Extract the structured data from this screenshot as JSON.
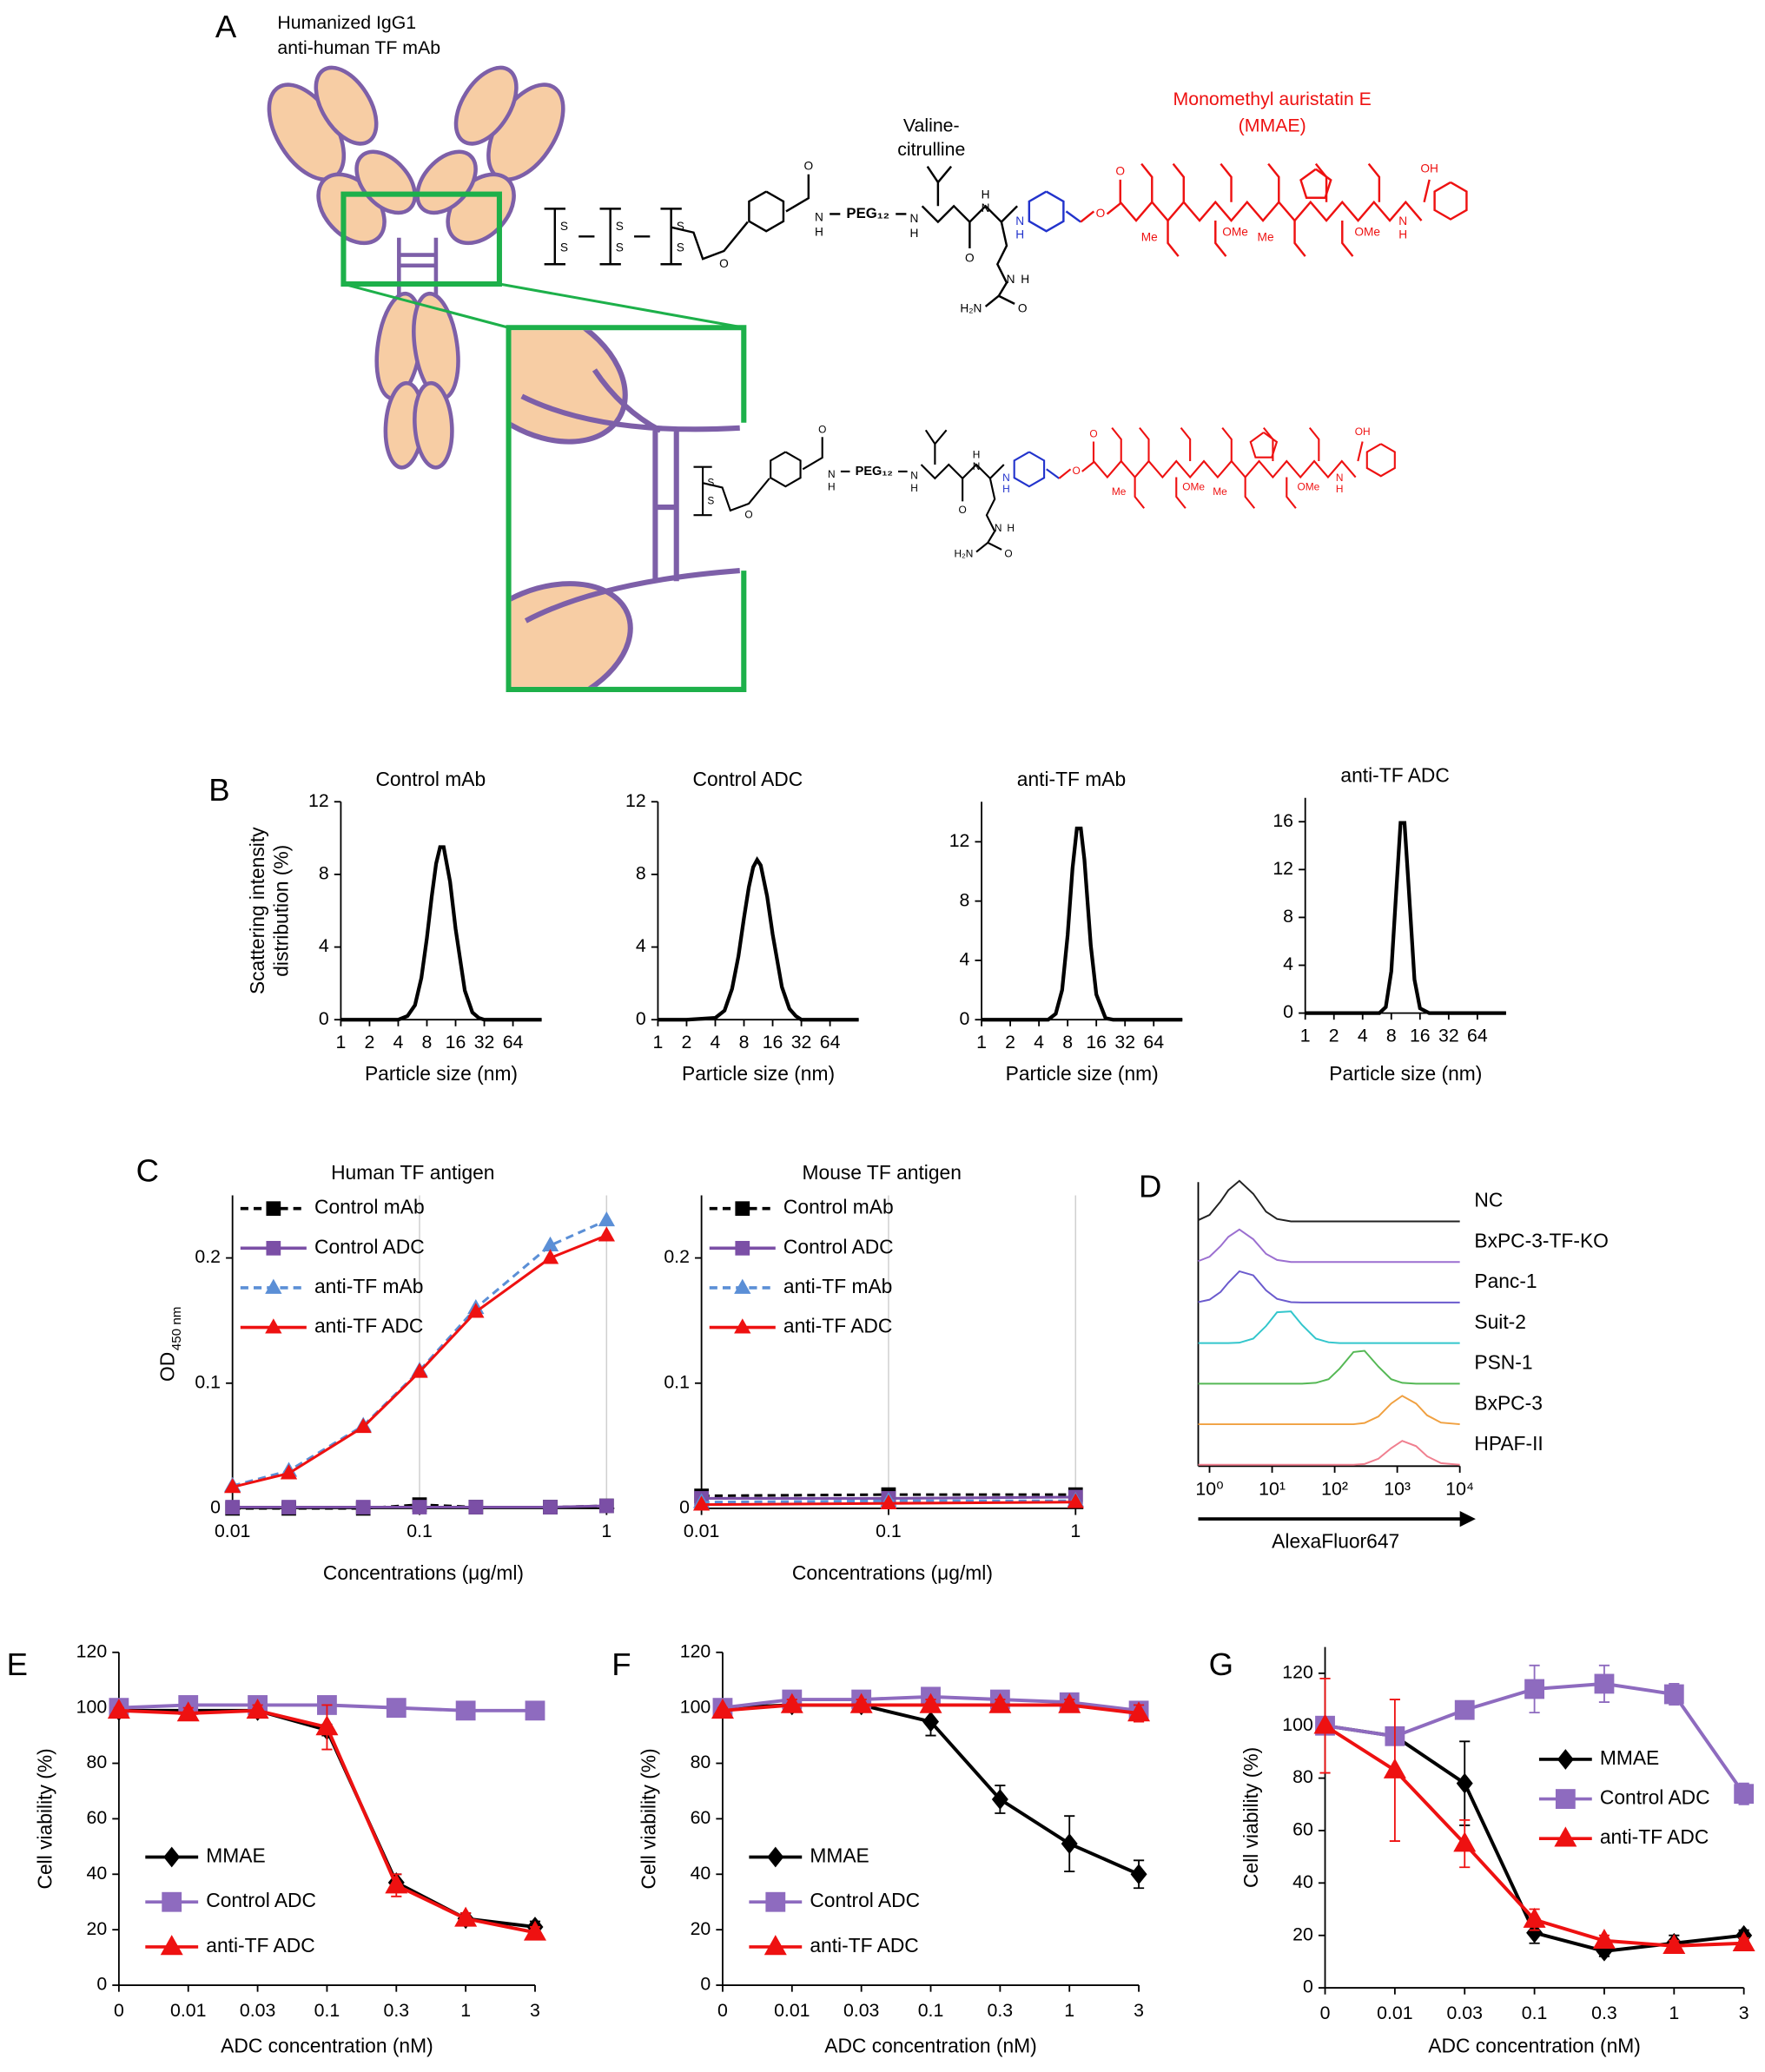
{
  "panels": [
    "A",
    "B",
    "C",
    "D",
    "E",
    "F",
    "G"
  ],
  "diagram": {
    "antibody_label": [
      "Humanized IgG1",
      "anti-human TF mAb"
    ],
    "linker_label": [
      "Valine-",
      "citrulline"
    ],
    "payload_label": [
      "Monomethyl auristatin E",
      "(MMAE)"
    ],
    "atoms": {
      "s": "S",
      "o": "O",
      "n": "N",
      "h": "H",
      "peg": "PEG₁₂",
      "h2n": "H₂N",
      "me": "Me",
      "ome": "OMe",
      "oh": "OH"
    }
  },
  "chart_data": [
    {
      "type": "line",
      "title": "Control mAb",
      "x_label": "Particle size (nm)",
      "y_label": [
        "Scattering intensity",
        "distribution (%)"
      ],
      "xscale": "log",
      "x": [
        1,
        2,
        4,
        5,
        6,
        7,
        8,
        9,
        10,
        11,
        12,
        14,
        16,
        20,
        24,
        28,
        32,
        64,
        128
      ],
      "xlim": [
        1,
        128
      ],
      "xticks": [
        1,
        2,
        4,
        8,
        16,
        32,
        64
      ],
      "ylim": [
        0,
        12
      ],
      "yticks": [
        0,
        4,
        8,
        12
      ],
      "series": [
        {
          "color": "#000000",
          "values": [
            0,
            0,
            0,
            0.2,
            0.8,
            2.3,
            4.5,
            6.8,
            8.6,
            9.5,
            9.5,
            7.6,
            5.0,
            1.6,
            0.4,
            0.1,
            0,
            0,
            0
          ]
        }
      ]
    },
    {
      "type": "line",
      "title": "Control ADC",
      "x_label": "Particle size (nm)",
      "xscale": "log",
      "x": [
        1,
        2,
        4,
        5,
        6,
        7,
        8,
        9,
        10,
        11,
        12,
        14,
        16,
        20,
        24,
        28,
        32,
        64,
        128
      ],
      "xlim": [
        1,
        128
      ],
      "xticks": [
        1,
        2,
        4,
        8,
        16,
        32,
        64
      ],
      "ylim": [
        0,
        12
      ],
      "yticks": [
        0,
        4,
        8,
        12
      ],
      "series": [
        {
          "color": "#000000",
          "values": [
            0,
            0,
            0.1,
            0.5,
            1.7,
            3.5,
            5.6,
            7.3,
            8.4,
            8.8,
            8.5,
            6.8,
            4.7,
            1.8,
            0.6,
            0.2,
            0,
            0,
            0
          ]
        }
      ]
    },
    {
      "type": "line",
      "title": "anti-TF mAb",
      "x_label": "Particle size (nm)",
      "xscale": "log",
      "x": [
        1,
        2,
        4,
        5,
        6,
        7,
        8,
        9,
        10,
        11,
        12,
        14,
        16,
        20,
        24,
        28,
        32,
        64,
        128
      ],
      "xlim": [
        1,
        128
      ],
      "xticks": [
        1,
        2,
        4,
        8,
        16,
        32,
        64
      ],
      "ylim": [
        0,
        14.7
      ],
      "yticks": [
        0,
        4,
        8,
        12
      ],
      "series": [
        {
          "color": "#000000",
          "values": [
            0,
            0,
            0,
            0,
            0.4,
            2.0,
            5.7,
            10.2,
            12.9,
            12.9,
            10.8,
            5.0,
            1.7,
            0.1,
            0,
            0,
            0,
            0,
            0
          ]
        }
      ]
    },
    {
      "type": "line",
      "title": "anti-TF ADC",
      "x_label": "Particle size (nm)",
      "xscale": "log",
      "x": [
        1,
        2,
        4,
        5,
        6,
        7,
        8,
        9,
        10,
        11,
        12,
        14,
        16,
        20,
        24,
        28,
        32,
        64,
        128
      ],
      "xlim": [
        1,
        128
      ],
      "xticks": [
        1,
        2,
        4,
        8,
        16,
        32,
        64
      ],
      "ylim": [
        0,
        18
      ],
      "yticks": [
        0,
        4,
        8,
        12,
        16
      ],
      "series": [
        {
          "color": "#000000",
          "values": [
            0,
            0,
            0,
            0,
            0,
            0.5,
            3.5,
            10.1,
            15.9,
            15.9,
            11.3,
            2.8,
            0.4,
            0,
            0,
            0,
            0,
            0,
            0
          ]
        }
      ]
    },
    {
      "type": "line",
      "title": "Human TF antigen",
      "x_label": "Concentrations (μg/ml)",
      "y_label": [
        "OD"
      ],
      "y_label_sub": "450 nm",
      "xscale": "log",
      "grid": "x",
      "legend": "upper left",
      "x": [
        0.01,
        0.02,
        0.05,
        0.1,
        0.2,
        0.5,
        1
      ],
      "xlim": [
        0.01,
        1.1
      ],
      "xticks": [
        0.01,
        0.1,
        1
      ],
      "ylim": [
        0,
        0.25
      ],
      "yticks": [
        0,
        0.1,
        0.2
      ],
      "series": [
        {
          "name": "Control mAb",
          "color": "#000000",
          "marker": "square",
          "dash": true,
          "values": [
            0,
            0,
            0,
            0.003,
            0.001,
            0.001,
            0.002
          ]
        },
        {
          "name": "Control ADC",
          "color": "#7b4fa6",
          "marker": "square",
          "dash": false,
          "values": [
            0.001,
            0.001,
            0.001,
            0.001,
            0.001,
            0.001,
            0.002
          ]
        },
        {
          "name": "anti-TF mAb",
          "color": "#5b8fd6",
          "marker": "triangle",
          "dash": true,
          "values": [
            0.018,
            0.03,
            0.066,
            0.11,
            0.16,
            0.21,
            0.23
          ]
        },
        {
          "name": "anti-TF ADC",
          "color": "#ee1111",
          "marker": "triangle",
          "dash": false,
          "values": [
            0.017,
            0.028,
            0.065,
            0.109,
            0.157,
            0.2,
            0.218
          ]
        }
      ]
    },
    {
      "type": "line",
      "title": "Mouse TF antigen",
      "x_label": "Concentrations (μg/ml)",
      "xscale": "log",
      "grid": "x",
      "legend": "upper left",
      "x": [
        0.01,
        0.1,
        1
      ],
      "xlim": [
        0.01,
        1.1
      ],
      "xticks": [
        0.01,
        0.1,
        1
      ],
      "ylim": [
        0,
        0.25
      ],
      "yticks": [
        0,
        0.1,
        0.2
      ],
      "series": [
        {
          "name": "Control mAb",
          "color": "#000000",
          "marker": "square",
          "dash": true,
          "values": [
            0.01,
            0.011,
            0.011
          ]
        },
        {
          "name": "Control ADC",
          "color": "#7b4fa6",
          "marker": "square",
          "dash": false,
          "values": [
            0.008,
            0.008,
            0.009
          ]
        },
        {
          "name": "anti-TF mAb",
          "color": "#5b8fd6",
          "marker": "triangle",
          "dash": true,
          "values": [
            0.005,
            0.006,
            0.006
          ]
        },
        {
          "name": "anti-TF ADC",
          "color": "#ee1111",
          "marker": "triangle",
          "dash": false,
          "values": [
            0.003,
            0.004,
            0.005
          ]
        }
      ]
    },
    {
      "type": "ridgeline",
      "x_label": "AlexaFluor647",
      "xscale": "log",
      "x": [
        0.66,
        1,
        1.5,
        2,
        3,
        5,
        8,
        12,
        20,
        30,
        50,
        80,
        120,
        200,
        300,
        500,
        800,
        1200,
        2000,
        3000,
        5000,
        10000
      ],
      "xlim": [
        0.66,
        10000
      ],
      "xticks": [
        {
          "value": 1,
          "label": "10⁰"
        },
        {
          "value": 10,
          "label": "10¹"
        },
        {
          "value": 100,
          "label": "10²"
        },
        {
          "value": 1000,
          "label": "10³"
        },
        {
          "value": 10000,
          "label": "10⁴"
        }
      ],
      "ylim": [
        0,
        100
      ],
      "series": [
        {
          "name": "NC",
          "color": "#222222",
          "values": [
            3,
            16,
            49,
            77,
            100,
            68,
            24,
            6,
            0,
            0,
            0,
            0,
            0,
            0,
            0,
            0,
            0,
            0,
            0,
            0,
            0,
            0
          ]
        },
        {
          "name": "BxPC-3-TF-KO",
          "color": "#9b6fd0",
          "values": [
            2,
            13,
            39,
            62,
            80,
            56,
            20,
            5,
            0,
            0,
            0,
            0,
            0,
            0,
            0,
            0,
            0,
            0,
            0,
            0,
            0,
            0
          ]
        },
        {
          "name": "Panc-1",
          "color": "#6a5acd",
          "values": [
            1,
            7,
            26,
            49,
            77,
            67,
            30,
            9,
            1,
            0,
            0,
            0,
            0,
            0,
            0,
            0,
            0,
            0,
            0,
            0,
            0,
            0
          ]
        },
        {
          "name": "Suit-2",
          "color": "#33c6cc",
          "values": [
            0,
            0,
            0,
            0,
            1,
            11,
            42,
            76,
            78,
            45,
            11,
            2,
            0,
            0,
            0,
            0,
            0,
            0,
            0,
            0,
            0,
            0
          ]
        },
        {
          "name": "PSN-1",
          "color": "#55b855",
          "values": [
            0,
            0,
            0,
            0,
            0,
            0,
            0,
            0,
            0,
            0,
            2,
            11,
            37,
            78,
            81,
            42,
            11,
            2,
            0,
            0,
            0,
            0
          ]
        },
        {
          "name": "BxPC-3",
          "color": "#f0a040",
          "values": [
            0,
            0,
            0,
            0,
            0,
            0,
            0,
            0,
            0,
            0,
            0,
            0,
            0,
            0,
            3,
            19,
            51,
            70,
            51,
            22,
            4,
            0
          ]
        },
        {
          "name": "HPAF-II",
          "color": "#f07f8f",
          "values": [
            0,
            0,
            0,
            0,
            0,
            0,
            0,
            0,
            0,
            0,
            0,
            0,
            0,
            0,
            2,
            15,
            41,
            59,
            46,
            21,
            4,
            0
          ]
        }
      ]
    },
    {
      "type": "line",
      "x_label": "ADC concentration (nM)",
      "y_label": [
        "Cell viability (%)"
      ],
      "legend": "lower left",
      "categories": [
        "0",
        "0.01",
        "0.03",
        "0.1",
        "0.3",
        "1",
        "3"
      ],
      "ylim": [
        0,
        120
      ],
      "yticks": [
        0,
        20,
        40,
        60,
        80,
        100,
        120
      ],
      "series": [
        {
          "name": "MMAE",
          "color": "#000000",
          "marker": "diamond",
          "values": [
            99,
            99,
            99,
            92,
            37,
            24,
            21
          ],
          "errors": [
            1,
            1,
            1,
            2,
            3,
            2,
            2
          ]
        },
        {
          "name": "Control ADC",
          "color": "#8e6bbf",
          "marker": "square",
          "values": [
            100,
            101,
            101,
            101,
            100,
            99,
            99
          ],
          "errors": [
            1,
            1,
            1,
            1,
            1,
            1,
            1
          ]
        },
        {
          "name": "anti-TF ADC",
          "color": "#ee1111",
          "marker": "triangle",
          "values": [
            99,
            98,
            99,
            93,
            36,
            24,
            19
          ],
          "errors": [
            1,
            2,
            2,
            8,
            4,
            2,
            2
          ]
        }
      ]
    },
    {
      "type": "line",
      "x_label": "ADC concentration (nM)",
      "y_label": [
        "Cell viability (%)"
      ],
      "legend": "lower left",
      "categories": [
        "0",
        "0.01",
        "0.03",
        "0.1",
        "0.3",
        "1",
        "3"
      ],
      "ylim": [
        0,
        120
      ],
      "yticks": [
        0,
        20,
        40,
        60,
        80,
        100,
        120
      ],
      "series": [
        {
          "name": "MMAE",
          "color": "#000000",
          "marker": "diamond",
          "values": [
            100,
            101,
            101,
            95,
            67,
            51,
            40
          ],
          "errors": [
            2,
            2,
            2,
            5,
            5,
            10,
            5
          ]
        },
        {
          "name": "Control ADC",
          "color": "#8e6bbf",
          "marker": "square",
          "values": [
            100,
            103,
            103,
            104,
            103,
            102,
            99
          ],
          "errors": [
            1,
            2,
            2,
            2,
            2,
            2,
            3
          ]
        },
        {
          "name": "anti-TF ADC",
          "color": "#ee1111",
          "marker": "triangle",
          "values": [
            99,
            101,
            101,
            101,
            101,
            101,
            98
          ],
          "errors": [
            1,
            2,
            2,
            2,
            2,
            2,
            3
          ]
        }
      ]
    },
    {
      "type": "line",
      "x_label": "ADC concentration (nM)",
      "y_label": [
        "Cell viability (%)"
      ],
      "legend": "center right",
      "categories": [
        "0",
        "0.01",
        "0.03",
        "0.1",
        "0.3",
        "1",
        "3"
      ],
      "ylim": [
        0,
        130
      ],
      "yticks": [
        0,
        20,
        40,
        60,
        80,
        100,
        120
      ],
      "series": [
        {
          "name": "MMAE",
          "color": "#000000",
          "marker": "diamond",
          "values": [
            100,
            96,
            78,
            21,
            14,
            17,
            20
          ],
          "errors": [
            0,
            0,
            16,
            4,
            2,
            3,
            2
          ]
        },
        {
          "name": "Control ADC",
          "color": "#8e6bbf",
          "marker": "square",
          "values": [
            100,
            96,
            106,
            114,
            116,
            112,
            74
          ],
          "errors": [
            0,
            0,
            2,
            9,
            7,
            4,
            4
          ]
        },
        {
          "name": "anti-TF ADC",
          "color": "#ee1111",
          "marker": "triangle",
          "values": [
            100,
            83,
            55,
            26,
            18,
            16,
            17
          ],
          "errors": [
            18,
            27,
            9,
            4,
            2,
            2,
            2
          ]
        }
      ]
    }
  ]
}
